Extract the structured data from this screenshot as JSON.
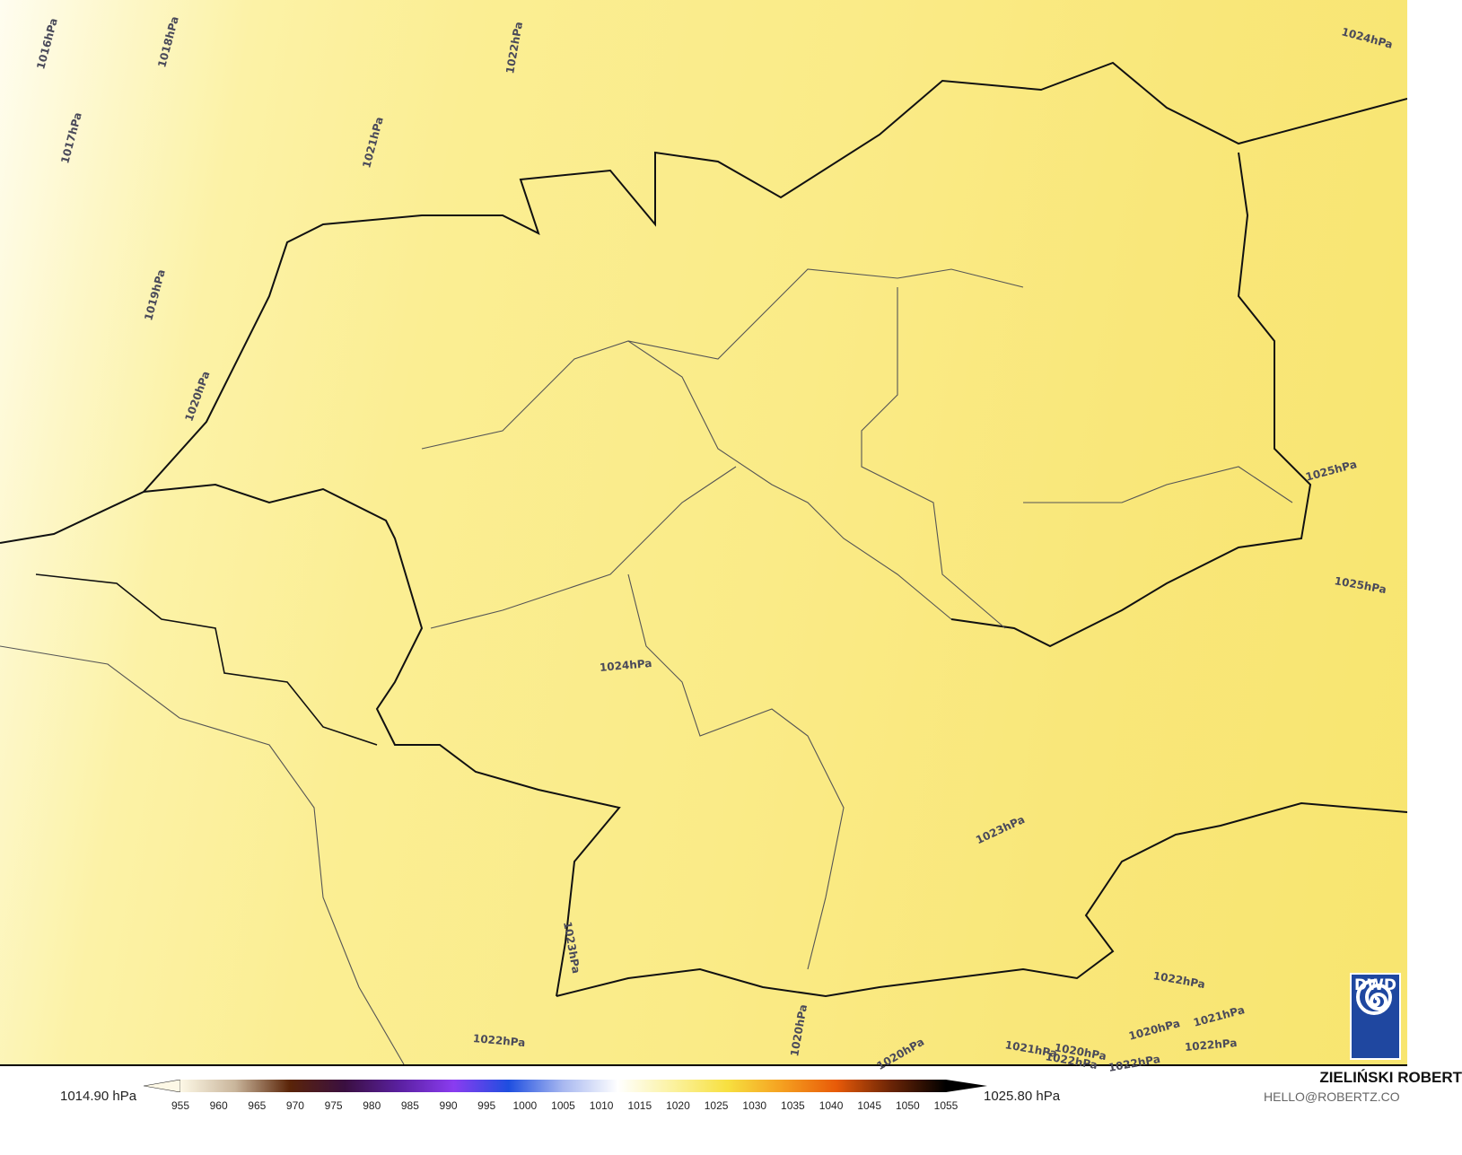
{
  "map": {
    "background_low_color": "#fffdf0",
    "background_high_color": "#f8e56f",
    "isobar_labels": [
      {
        "text": "1016hPa"
      },
      {
        "text": "1018hPa"
      },
      {
        "text": "1022hPa"
      },
      {
        "text": "1024hPa"
      },
      {
        "text": "1017hPa"
      },
      {
        "text": "1021hPa"
      },
      {
        "text": "1019hPa"
      },
      {
        "text": "1020hPa"
      },
      {
        "text": "1025hPa"
      },
      {
        "text": "1025hPa"
      },
      {
        "text": "1024hPa"
      },
      {
        "text": "1023hPa"
      },
      {
        "text": "1023hPa"
      },
      {
        "text": "1022hPa"
      },
      {
        "text": "1022hPa"
      },
      {
        "text": "1021hPa"
      },
      {
        "text": "1020hPa"
      },
      {
        "text": "1022hPa"
      },
      {
        "text": "1020hPa"
      },
      {
        "text": "1020hPa"
      },
      {
        "text": "1021hPa"
      },
      {
        "text": "1020hPa"
      },
      {
        "text": "1022hPa"
      },
      {
        "text": "1022hPa"
      }
    ]
  },
  "colorbar": {
    "min_label": "1014.90 hPa",
    "max_label": "1025.80 hPa",
    "ticks": [
      "955",
      "960",
      "965",
      "970",
      "975",
      "980",
      "985",
      "990",
      "995",
      "1000",
      "1005",
      "1010",
      "1015",
      "1020",
      "1025",
      "1030",
      "1035",
      "1040",
      "1045",
      "1050",
      "1055"
    ],
    "colors": [
      "#fdf8e6",
      "#c9b59b",
      "#5a2408",
      "#3a0f40",
      "#5a20a0",
      "#8a3cf0",
      "#1e4ee0",
      "#a8b8f0",
      "#ffffff",
      "#fbf2a0",
      "#f7e040",
      "#f5a020",
      "#e85a08",
      "#6a2406",
      "#000000"
    ]
  },
  "logo": {
    "text": "DWD"
  },
  "credit": {
    "name": "ZIELIŃSKI ROBERT",
    "email": "HELLO@ROBERTZ.CO"
  }
}
